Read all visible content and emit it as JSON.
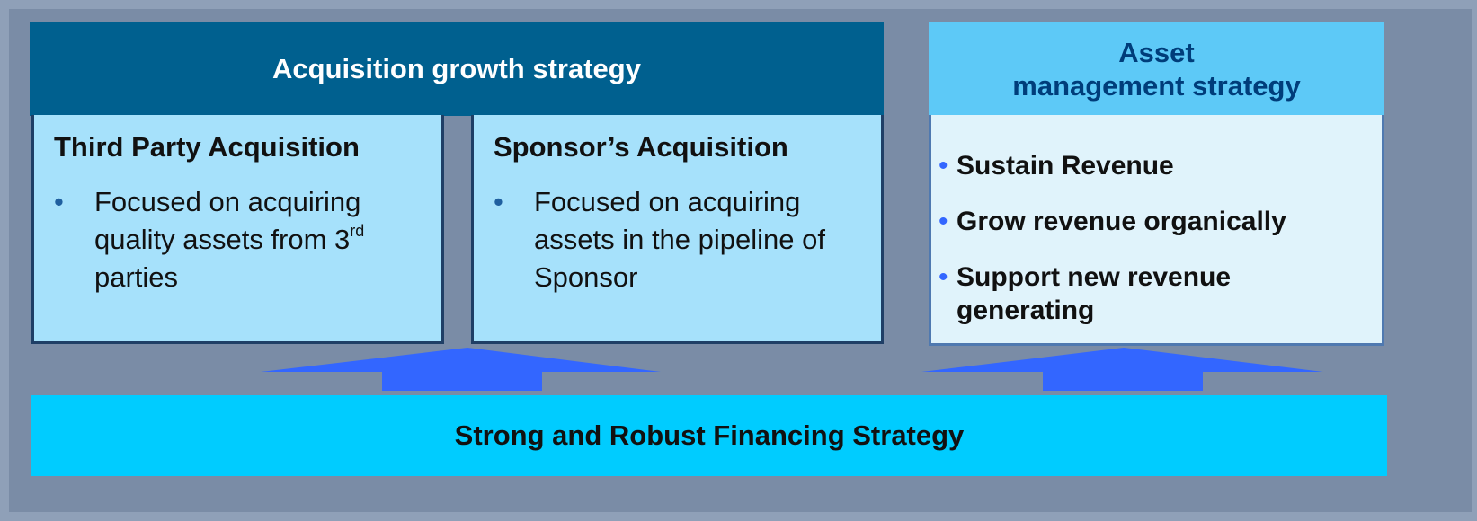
{
  "acquisition": {
    "title": "Acquisition growth strategy",
    "boxes": [
      {
        "title": "Third Party Acquisition",
        "bullet": {
          "text": "Focused on acquiring quality assets from 3",
          "sup": "rd",
          "tail": " parties"
        }
      },
      {
        "title": "Sponsor’s Acquisition",
        "bullet": {
          "text": "Focused on acquiring assets in the pipeline of Sponsor"
        }
      }
    ]
  },
  "asset_management": {
    "title_lines": [
      "Asset",
      "management strategy"
    ],
    "bullets": [
      "Sustain Revenue",
      "Grow revenue organically",
      "Support new revenue generating"
    ]
  },
  "financing": {
    "title": "Strong and Robust Financing Strategy"
  }
}
